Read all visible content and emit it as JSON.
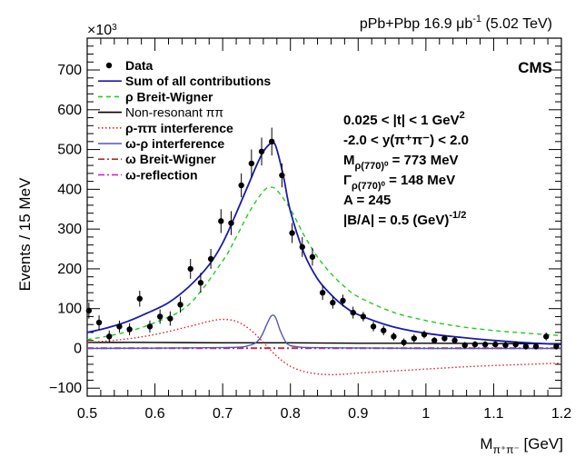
{
  "header": {
    "dataset": "pPb+Pbp 16.9 μb",
    "dataset_sup": "-1",
    "energy": " (5.02 TeV)",
    "experiment": "CMS"
  },
  "chart_data": {
    "type": "line",
    "xlabel": "M",
    "xlabel_sub": "π⁺π⁻",
    "xlabel_unit": " [GeV]",
    "ylabel": "Events / 15 MeV",
    "y_multiplier": "×10",
    "y_multiplier_exp": "3",
    "xlim": [
      0.5,
      1.2
    ],
    "ylim": [
      -120,
      780
    ],
    "x_ticks": [
      0.5,
      0.6,
      0.7,
      0.8,
      0.9,
      1.0,
      1.1,
      1.2
    ],
    "x_tick_labels": [
      "0.5",
      "0.6",
      "0.7",
      "0.8",
      "0.9",
      "1",
      "1.1",
      "1.2"
    ],
    "y_ticks": [
      -100,
      0,
      100,
      200,
      300,
      400,
      500,
      600,
      700
    ],
    "y_tick_labels": [
      "−100",
      "0",
      "100",
      "200",
      "300",
      "400",
      "500",
      "600",
      "700"
    ],
    "legend": [
      {
        "key": "data",
        "label": "Data",
        "color": "#000000",
        "style": "marker"
      },
      {
        "key": "sum",
        "label": "Sum of all contributions",
        "color": "#1a1aa8",
        "style": "solid"
      },
      {
        "key": "rho_bw",
        "label": "ρ Breit-Wigner",
        "color": "#22cc22",
        "style": "dashed"
      },
      {
        "key": "nonres",
        "label": "Non-resonant ππ",
        "color": "#000000",
        "style": "solid"
      },
      {
        "key": "rho_pipi",
        "label": "ρ-ππ interference",
        "color": "#e0202a",
        "style": "dotted"
      },
      {
        "key": "omega_rho",
        "label": "ω-ρ interference",
        "color": "#5555bb",
        "style": "solid"
      },
      {
        "key": "omega_bw",
        "label": "ω Breit-Wigner",
        "color": "#b03020",
        "style": "dashdot"
      },
      {
        "key": "omega_refl",
        "label": "ω-reflection",
        "color": "#cc22cc",
        "style": "dashdot"
      }
    ],
    "info_lines": [
      {
        "text": "0.025 < |t| < 1 GeV",
        "sup": "2",
        "sub": ""
      },
      {
        "text": "-2.0 < y(π⁺π⁻) < 2.0",
        "sup": "",
        "sub": ""
      },
      {
        "text": "M",
        "sub": "ρ(770)⁰",
        "text2": " = 773 MeV"
      },
      {
        "text": "Γ",
        "sub": "ρ(770)⁰",
        "text2": " = 148 MeV"
      },
      {
        "text": "A = 245",
        "sup": "",
        "sub": ""
      },
      {
        "text": "|B/A| = 0.5 (GeV)",
        "sup": "-1/2",
        "sub": ""
      }
    ],
    "series": [
      {
        "key": "data",
        "points": [
          {
            "x": 0.5025,
            "y": 95,
            "err": 20
          },
          {
            "x": 0.5175,
            "y": 65,
            "err": 18
          },
          {
            "x": 0.5325,
            "y": 30,
            "err": 15
          },
          {
            "x": 0.5475,
            "y": 55,
            "err": 15
          },
          {
            "x": 0.5625,
            "y": 48,
            "err": 15
          },
          {
            "x": 0.5775,
            "y": 125,
            "err": 20
          },
          {
            "x": 0.5925,
            "y": 55,
            "err": 15
          },
          {
            "x": 0.6075,
            "y": 80,
            "err": 18
          },
          {
            "x": 0.6225,
            "y": 75,
            "err": 18
          },
          {
            "x": 0.6375,
            "y": 110,
            "err": 20
          },
          {
            "x": 0.6525,
            "y": 200,
            "err": 25
          },
          {
            "x": 0.6675,
            "y": 165,
            "err": 25
          },
          {
            "x": 0.6825,
            "y": 225,
            "err": 25
          },
          {
            "x": 0.6975,
            "y": 320,
            "err": 30
          },
          {
            "x": 0.7125,
            "y": 315,
            "err": 30
          },
          {
            "x": 0.7275,
            "y": 410,
            "err": 30
          },
          {
            "x": 0.7425,
            "y": 465,
            "err": 35
          },
          {
            "x": 0.7575,
            "y": 495,
            "err": 35
          },
          {
            "x": 0.7725,
            "y": 520,
            "err": 35
          },
          {
            "x": 0.7875,
            "y": 435,
            "err": 30
          },
          {
            "x": 0.8025,
            "y": 290,
            "err": 25
          },
          {
            "x": 0.8175,
            "y": 255,
            "err": 25
          },
          {
            "x": 0.8325,
            "y": 230,
            "err": 22
          },
          {
            "x": 0.8475,
            "y": 140,
            "err": 18
          },
          {
            "x": 0.8625,
            "y": 115,
            "err": 15
          },
          {
            "x": 0.8775,
            "y": 120,
            "err": 15
          },
          {
            "x": 0.8925,
            "y": 90,
            "err": 15
          },
          {
            "x": 0.9075,
            "y": 80,
            "err": 12
          },
          {
            "x": 0.9225,
            "y": 55,
            "err": 12
          },
          {
            "x": 0.9375,
            "y": 45,
            "err": 12
          },
          {
            "x": 0.9525,
            "y": 30,
            "err": 10
          },
          {
            "x": 0.9675,
            "y": 15,
            "err": 10
          },
          {
            "x": 0.9825,
            "y": 25,
            "err": 10
          },
          {
            "x": 0.9975,
            "y": 35,
            "err": 10
          },
          {
            "x": 1.0125,
            "y": 20,
            "err": 8
          },
          {
            "x": 1.0275,
            "y": 25,
            "err": 8
          },
          {
            "x": 1.0425,
            "y": 20,
            "err": 8
          },
          {
            "x": 1.0575,
            "y": 8,
            "err": 8
          },
          {
            "x": 1.0725,
            "y": 10,
            "err": 8
          },
          {
            "x": 1.0875,
            "y": 10,
            "err": 8
          },
          {
            "x": 1.1025,
            "y": 10,
            "err": 8
          },
          {
            "x": 1.1175,
            "y": 8,
            "err": 8
          },
          {
            "x": 1.1325,
            "y": 10,
            "err": 8
          },
          {
            "x": 1.1475,
            "y": 5,
            "err": 8
          },
          {
            "x": 1.1625,
            "y": 5,
            "err": 8
          },
          {
            "x": 1.1775,
            "y": 30,
            "err": 10
          },
          {
            "x": 1.1925,
            "y": 5,
            "err": 8
          }
        ]
      },
      {
        "key": "sum",
        "x": [
          0.5,
          0.53,
          0.56,
          0.59,
          0.62,
          0.65,
          0.68,
          0.7,
          0.72,
          0.74,
          0.75,
          0.76,
          0.77,
          0.775,
          0.78,
          0.79,
          0.8,
          0.82,
          0.84,
          0.86,
          0.88,
          0.9,
          0.95,
          1.0,
          1.05,
          1.1,
          1.15,
          1.2
        ],
        "y": [
          40,
          52,
          68,
          90,
          115,
          155,
          210,
          265,
          340,
          420,
          460,
          495,
          515,
          518,
          500,
          430,
          345,
          240,
          175,
          135,
          105,
          85,
          55,
          38,
          28,
          20,
          14,
          10
        ]
      },
      {
        "key": "rho_bw",
        "x": [
          0.5,
          0.55,
          0.6,
          0.65,
          0.7,
          0.72,
          0.74,
          0.76,
          0.77,
          0.78,
          0.8,
          0.82,
          0.84,
          0.86,
          0.88,
          0.9,
          0.95,
          1.0,
          1.05,
          1.1,
          1.15,
          1.2
        ],
        "y": [
          22,
          38,
          65,
          110,
          220,
          280,
          345,
          395,
          405,
          398,
          350,
          285,
          230,
          188,
          155,
          130,
          92,
          70,
          55,
          45,
          38,
          32
        ]
      },
      {
        "key": "nonres",
        "x": [
          0.5,
          0.6,
          0.7,
          0.8,
          0.9,
          1.0,
          1.1,
          1.2
        ],
        "y": [
          15,
          15,
          14,
          14,
          13,
          13,
          12,
          12
        ]
      },
      {
        "key": "rho_pipi",
        "x": [
          0.5,
          0.55,
          0.6,
          0.65,
          0.68,
          0.7,
          0.72,
          0.74,
          0.76,
          0.78,
          0.8,
          0.82,
          0.84,
          0.86,
          0.88,
          0.9,
          0.95,
          1.0,
          1.05,
          1.1,
          1.15,
          1.2
        ],
        "y": [
          15,
          22,
          35,
          55,
          68,
          73,
          68,
          48,
          15,
          -20,
          -45,
          -58,
          -64,
          -66,
          -65,
          -62,
          -57,
          -52,
          -47,
          -43,
          -40,
          -37
        ]
      },
      {
        "key": "omega_rho",
        "x": [
          0.5,
          0.7,
          0.74,
          0.755,
          0.765,
          0.772,
          0.778,
          0.785,
          0.795,
          0.81,
          0.83,
          0.9,
          1.0,
          1.2
        ],
        "y": [
          0,
          2,
          8,
          25,
          60,
          82,
          78,
          45,
          12,
          4,
          2,
          1,
          0,
          0
        ]
      },
      {
        "key": "omega_bw",
        "x": [
          0.5,
          0.6,
          0.7,
          0.8,
          0.9,
          1.0,
          1.1,
          1.2
        ],
        "y": [
          1,
          1,
          1,
          1,
          1,
          1,
          1,
          1
        ]
      },
      {
        "key": "omega_refl",
        "x": [
          0.5,
          0.6,
          0.7,
          0.8,
          0.9,
          1.0,
          1.1,
          1.2
        ],
        "y": [
          0,
          0,
          0,
          0,
          0,
          0,
          0,
          0
        ]
      }
    ]
  }
}
